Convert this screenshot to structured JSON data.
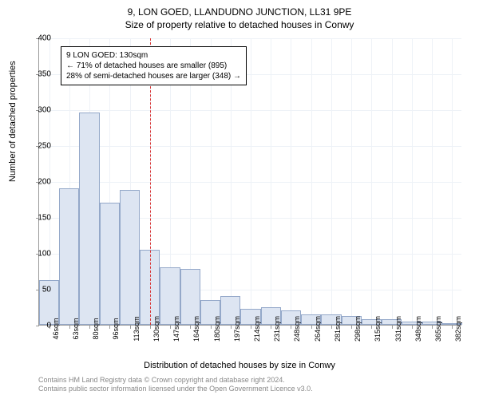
{
  "title_main": "9, LON GOED, LLANDUDNO JUNCTION, LL31 9PE",
  "title_sub": "Size of property relative to detached houses in Conwy",
  "chart": {
    "type": "histogram",
    "x_axis_label": "Distribution of detached houses by size in Conwy",
    "y_axis_label": "Number of detached properties",
    "y_max": 400,
    "y_tick_step": 50,
    "x_start": 46,
    "x_step": 17,
    "x_unit": "sqm",
    "bar_width_ratio": 1.0,
    "bar_fill": "#dde5f2",
    "bar_border": "#94a8c9",
    "grid_color": "#eef2f7",
    "axis_color": "#999999",
    "reference_line": {
      "x_value": 130,
      "color": "#d93333"
    },
    "x_ticks": [
      46,
      63,
      80,
      96,
      113,
      130,
      147,
      164,
      180,
      197,
      214,
      231,
      248,
      264,
      281,
      298,
      315,
      331,
      348,
      365,
      382
    ],
    "values": [
      62,
      190,
      296,
      170,
      188,
      105,
      80,
      78,
      35,
      40,
      22,
      25,
      20,
      15,
      15,
      12,
      8,
      8,
      4,
      5,
      1
    ]
  },
  "annotation": {
    "line1": "9 LON GOED: 130sqm",
    "line2": "← 71% of detached houses are smaller (895)",
    "line3": "28% of semi-detached houses are larger (348) →"
  },
  "footer": {
    "line1": "Contains HM Land Registry data © Crown copyright and database right 2024.",
    "line2": "Contains public sector information licensed under the Open Government Licence v3.0."
  }
}
